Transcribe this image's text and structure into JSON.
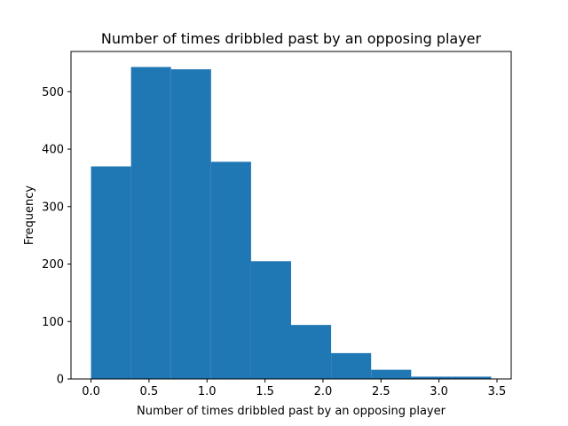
{
  "chart_data": {
    "type": "bar",
    "subtype": "histogram",
    "title": "Number of times dribbled past by an opposing player",
    "xlabel": "Number of times dribbled past by an opposing player",
    "ylabel": "Frequency",
    "bin_edges": [
      0.0,
      0.345,
      0.69,
      1.035,
      1.38,
      1.725,
      2.07,
      2.415,
      2.76,
      3.105,
      3.45
    ],
    "values": [
      370,
      543,
      539,
      378,
      205,
      94,
      45,
      16,
      4,
      4
    ],
    "xlim": [
      -0.1725,
      3.6225
    ],
    "ylim": [
      0,
      570
    ],
    "xticks": [
      0.0,
      0.5,
      1.0,
      1.5,
      2.0,
      2.5,
      3.0,
      3.5
    ],
    "xtick_labels": [
      "0.0",
      "0.5",
      "1.0",
      "1.5",
      "2.0",
      "2.5",
      "3.0",
      "3.5"
    ],
    "yticks": [
      0,
      100,
      200,
      300,
      400,
      500
    ],
    "ytick_labels": [
      "0",
      "100",
      "200",
      "300",
      "400",
      "500"
    ],
    "bar_color": "#1f77b4",
    "grid": false,
    "legend": "none"
  }
}
